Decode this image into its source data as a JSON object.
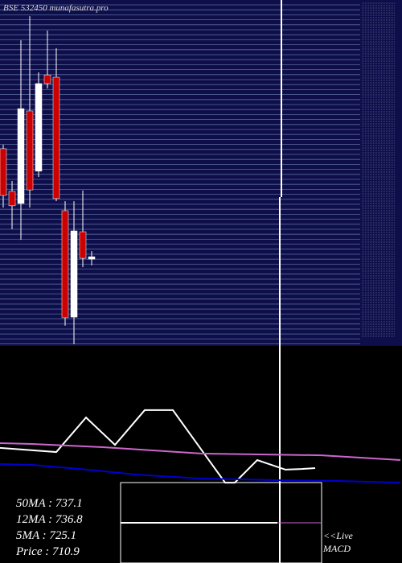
{
  "chart_data": [
    {
      "type": "candlestick",
      "title": "BSE 532450 munafasutra.pro",
      "open": [
        748.4,
        733.6,
        729.4,
        761.5,
        740.6,
        774.0,
        773.2,
        726.9,
        690.0,
        719.6,
        710.1
      ],
      "high": [
        749.8,
        737.2,
        786.0,
        794.4,
        774.9,
        789.4,
        783.3,
        730.2,
        730.2,
        733.9,
        712.9
      ],
      "low": [
        728.0,
        720.5,
        716.8,
        728.0,
        738.6,
        769.3,
        730.2,
        687.0,
        680.6,
        707.3,
        707.9
      ],
      "close": [
        732.2,
        728.6,
        762.3,
        734.1,
        771.0,
        771.0,
        731.1,
        689.8,
        719.9,
        710.4,
        710.9
      ],
      "up_color": "#ffffff",
      "down_color": "#cc0000",
      "background": "#0e0e4a",
      "grid": true,
      "ylim": [
        680,
        800
      ]
    },
    {
      "type": "line",
      "series": [
        {
          "color": "#ffffff",
          "x": [
            0,
            70,
            107,
            143,
            180,
            215,
            280,
            292,
            320,
            355,
            375,
            392
          ],
          "values": [
            53.0,
            51.1,
            67.0,
            54.4,
            70.4,
            70.4,
            37.0,
            37.0,
            47.4,
            43.0,
            43.3,
            43.7
          ]
        },
        {
          "color": "#cc66cc",
          "x": [
            0,
            40,
            130,
            250,
            400,
            498
          ],
          "values": [
            55.2,
            54.8,
            53.3,
            50.4,
            49.6,
            47.4
          ]
        },
        {
          "color": "#0000cc",
          "x": [
            0,
            40,
            100,
            170,
            250,
            350,
            420,
            498
          ],
          "values": [
            45.6,
            45.2,
            43.3,
            40.7,
            38.9,
            38.1,
            37.8,
            37.0
          ]
        }
      ],
      "stats": [
        "50MA : 737.1",
        "12MA : 736.8",
        "5MA : 725.1",
        "Price  : 710.9"
      ],
      "live_label": [
        "<<Live",
        "MACD"
      ],
      "xlim": [
        0,
        500
      ],
      "ylim": [
        0,
        100
      ]
    }
  ]
}
